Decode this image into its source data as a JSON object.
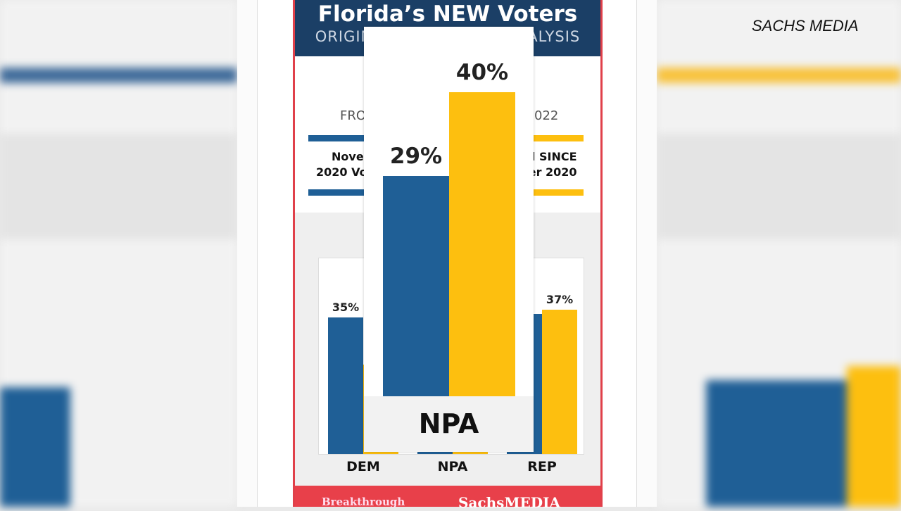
{
  "watermark": "SACHS MEDIA",
  "colors": {
    "blue": "#1f5f96",
    "yellow": "#fdbf0f",
    "header": "#1b3f66",
    "footer": "#e8404a"
  },
  "header": {
    "title": "Florida’s NEW Voters",
    "subtitle_left": "ORIGIN",
    "subtitle_right": "ALYSIS"
  },
  "legend": {
    "from_left": "FRO",
    "from_right": "022",
    "left_line1": "Nove",
    "left_line2": "2020 Vo",
    "right_line1": "d SINCE",
    "right_line2": "er 2020"
  },
  "footer": {
    "left": "Breakthrough",
    "right": "SachsMEDIA"
  },
  "chart_data": {
    "type": "bar",
    "categories": [
      "DEM",
      "NPA",
      "REP"
    ],
    "series": [
      {
        "color": "#1f5f96",
        "values": [
          35,
          29,
          36
        ],
        "labels": [
          "35%",
          "29%",
          ""
        ]
      },
      {
        "color": "#fdbf0f",
        "values": [
          23,
          40,
          37
        ],
        "labels": [
          "",
          "40%",
          "37%"
        ]
      }
    ],
    "ylim": [
      0,
      50
    ],
    "zoom_callout": {
      "category": "NPA",
      "labels": [
        "29%",
        "40%"
      ]
    }
  }
}
